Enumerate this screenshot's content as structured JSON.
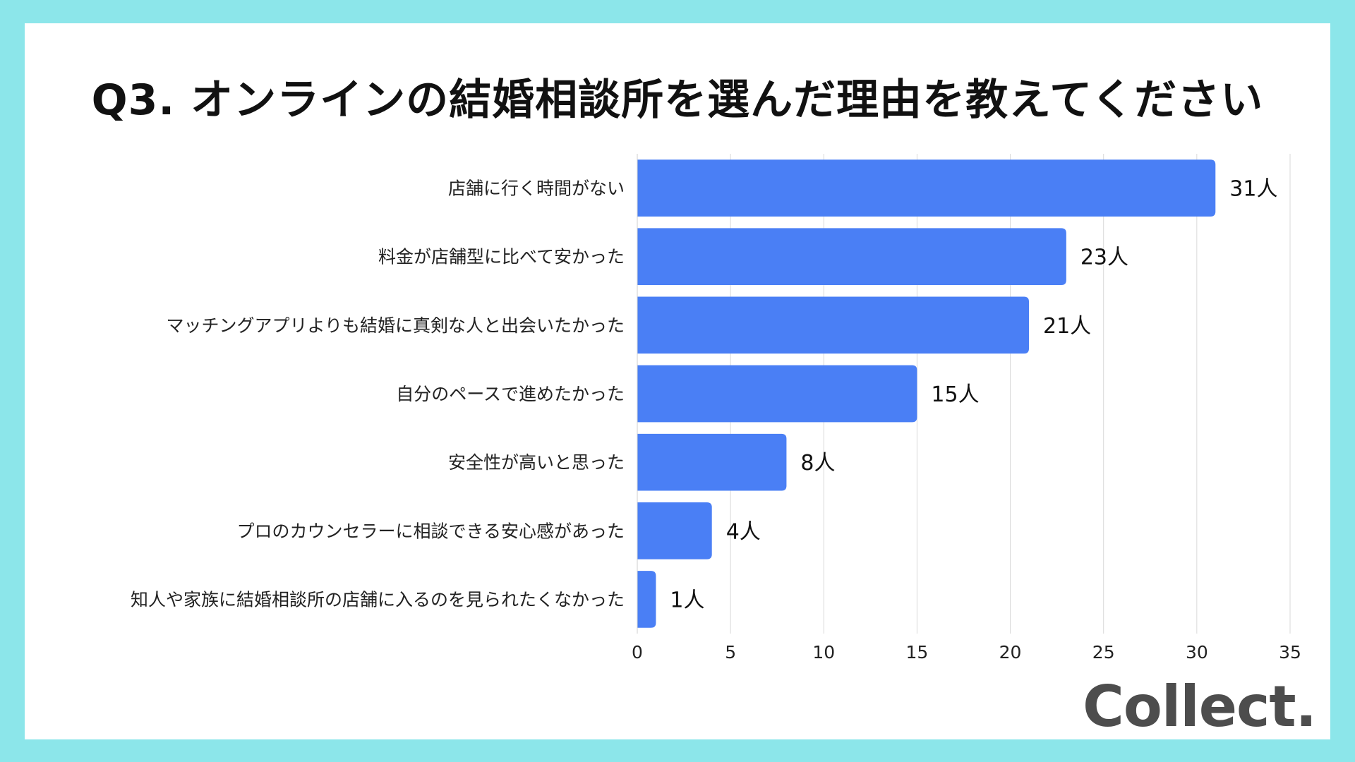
{
  "chart_data": {
    "type": "bar",
    "orientation": "horizontal",
    "title": "Q3. オンラインの結婚相談所を選んだ理由を教えてください",
    "categories": [
      "店舗に行く時間がない",
      "料金が店舗型に比べて安かった",
      "マッチングアプリよりも結婚に真剣な人と出会いたかった",
      "自分のペースで進めたかった",
      "安全性が高いと思った",
      "プロのカウンセラーに相談できる安心感があった",
      "知人や家族に結婚相談所の店舗に入るのを見られたくなかった"
    ],
    "values": [
      31,
      23,
      21,
      15,
      8,
      4,
      1
    ],
    "value_suffix": "人",
    "xlim": [
      0,
      35
    ],
    "xticks": [
      0,
      5,
      10,
      15,
      20,
      25,
      30,
      35
    ],
    "grid": "vertical",
    "legend": "none",
    "bar_color": "#4a7ff5"
  },
  "logo_text": "Collect."
}
